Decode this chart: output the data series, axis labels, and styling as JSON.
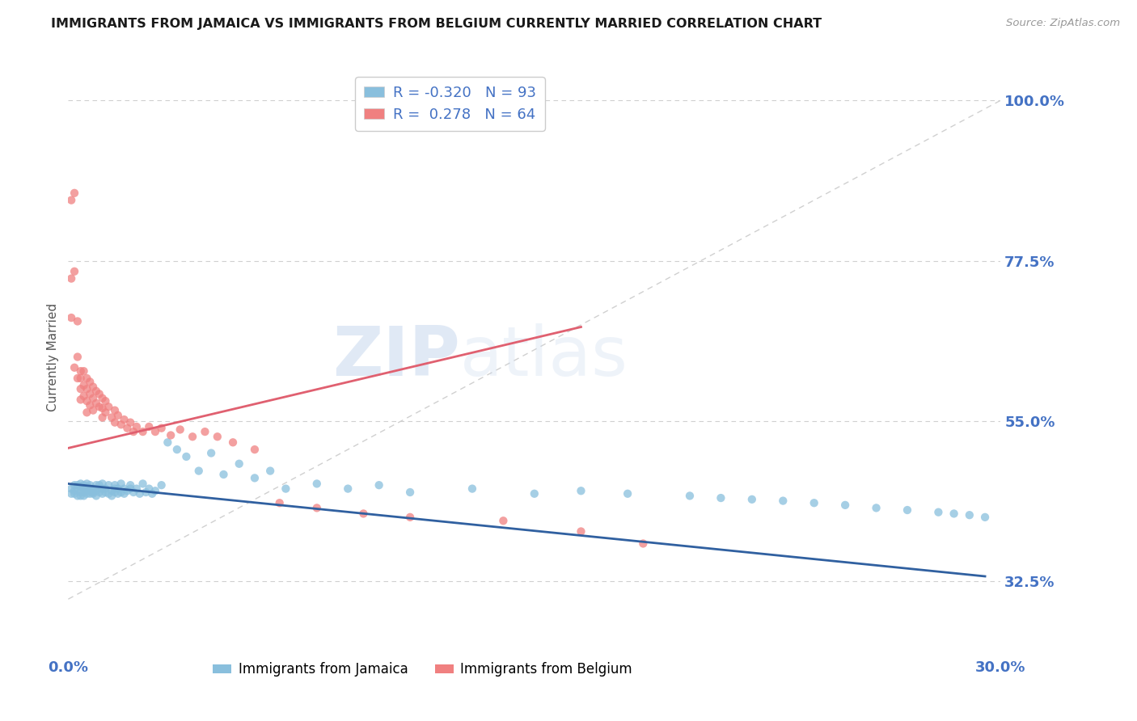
{
  "title": "IMMIGRANTS FROM JAMAICA VS IMMIGRANTS FROM BELGIUM CURRENTLY MARRIED CORRELATION CHART",
  "source_text": "Source: ZipAtlas.com",
  "ylabel": "Currently Married",
  "xlim": [
    0.0,
    0.3
  ],
  "ylim": [
    0.22,
    1.06
  ],
  "yticks": [
    0.325,
    0.55,
    0.775,
    1.0
  ],
  "ytick_labels": [
    "32.5%",
    "55.0%",
    "77.5%",
    "100.0%"
  ],
  "xticks": [
    0.0,
    0.3
  ],
  "xtick_labels": [
    "0.0%",
    "30.0%"
  ],
  "series_jamaica": {
    "name": "Immigrants from Jamaica",
    "color": "#89bfdd",
    "marker_color": "#89bfdd",
    "R": -0.32,
    "N": 93,
    "x": [
      0.001,
      0.001,
      0.002,
      0.002,
      0.002,
      0.003,
      0.003,
      0.003,
      0.004,
      0.004,
      0.004,
      0.004,
      0.005,
      0.005,
      0.005,
      0.005,
      0.006,
      0.006,
      0.006,
      0.006,
      0.007,
      0.007,
      0.007,
      0.007,
      0.008,
      0.008,
      0.008,
      0.009,
      0.009,
      0.009,
      0.01,
      0.01,
      0.01,
      0.011,
      0.011,
      0.011,
      0.012,
      0.012,
      0.013,
      0.013,
      0.014,
      0.014,
      0.015,
      0.015,
      0.015,
      0.016,
      0.016,
      0.017,
      0.017,
      0.018,
      0.018,
      0.019,
      0.02,
      0.02,
      0.021,
      0.022,
      0.023,
      0.024,
      0.025,
      0.026,
      0.027,
      0.028,
      0.03,
      0.032,
      0.035,
      0.038,
      0.042,
      0.046,
      0.05,
      0.055,
      0.06,
      0.065,
      0.07,
      0.08,
      0.09,
      0.1,
      0.11,
      0.13,
      0.15,
      0.165,
      0.18,
      0.2,
      0.21,
      0.22,
      0.23,
      0.24,
      0.25,
      0.26,
      0.27,
      0.28,
      0.285,
      0.29,
      0.295
    ],
    "y": [
      0.455,
      0.448,
      0.46,
      0.452,
      0.448,
      0.455,
      0.46,
      0.445,
      0.45,
      0.458,
      0.462,
      0.445,
      0.455,
      0.46,
      0.45,
      0.445,
      0.452,
      0.458,
      0.448,
      0.462,
      0.455,
      0.448,
      0.46,
      0.452,
      0.45,
      0.455,
      0.448,
      0.46,
      0.452,
      0.445,
      0.455,
      0.46,
      0.45,
      0.455,
      0.448,
      0.462,
      0.45,
      0.455,
      0.448,
      0.46,
      0.452,
      0.445,
      0.455,
      0.46,
      0.45,
      0.455,
      0.448,
      0.462,
      0.45,
      0.455,
      0.448,
      0.452,
      0.455,
      0.46,
      0.45,
      0.455,
      0.448,
      0.462,
      0.45,
      0.455,
      0.448,
      0.452,
      0.46,
      0.52,
      0.51,
      0.5,
      0.48,
      0.505,
      0.475,
      0.49,
      0.47,
      0.48,
      0.455,
      0.462,
      0.455,
      0.46,
      0.45,
      0.455,
      0.448,
      0.452,
      0.448,
      0.445,
      0.442,
      0.44,
      0.438,
      0.435,
      0.432,
      0.428,
      0.425,
      0.422,
      0.42,
      0.418,
      0.415
    ],
    "trend_x": [
      0.0,
      0.295
    ],
    "trend_y": [
      0.462,
      0.332
    ]
  },
  "series_belgium": {
    "name": "Immigrants from Belgium",
    "color": "#f08080",
    "marker_color": "#f08080",
    "R": 0.278,
    "N": 64,
    "x": [
      0.001,
      0.001,
      0.001,
      0.002,
      0.002,
      0.002,
      0.003,
      0.003,
      0.003,
      0.004,
      0.004,
      0.004,
      0.004,
      0.005,
      0.005,
      0.005,
      0.006,
      0.006,
      0.006,
      0.006,
      0.007,
      0.007,
      0.007,
      0.008,
      0.008,
      0.008,
      0.009,
      0.009,
      0.01,
      0.01,
      0.011,
      0.011,
      0.011,
      0.012,
      0.012,
      0.013,
      0.014,
      0.015,
      0.015,
      0.016,
      0.017,
      0.018,
      0.019,
      0.02,
      0.021,
      0.022,
      0.024,
      0.026,
      0.028,
      0.03,
      0.033,
      0.036,
      0.04,
      0.044,
      0.048,
      0.053,
      0.06,
      0.068,
      0.08,
      0.095,
      0.11,
      0.14,
      0.165,
      0.185
    ],
    "y": [
      0.86,
      0.75,
      0.695,
      0.87,
      0.76,
      0.625,
      0.69,
      0.64,
      0.61,
      0.62,
      0.61,
      0.595,
      0.58,
      0.62,
      0.6,
      0.585,
      0.61,
      0.595,
      0.578,
      0.562,
      0.605,
      0.588,
      0.572,
      0.598,
      0.582,
      0.565,
      0.592,
      0.575,
      0.588,
      0.57,
      0.582,
      0.568,
      0.555,
      0.578,
      0.562,
      0.57,
      0.555,
      0.565,
      0.548,
      0.558,
      0.545,
      0.552,
      0.54,
      0.548,
      0.535,
      0.542,
      0.535,
      0.542,
      0.535,
      0.54,
      0.53,
      0.538,
      0.528,
      0.535,
      0.528,
      0.52,
      0.51,
      0.435,
      0.428,
      0.42,
      0.415,
      0.41,
      0.395,
      0.378
    ],
    "trend_x": [
      0.0,
      0.165
    ],
    "trend_y": [
      0.512,
      0.682
    ]
  },
  "ref_line": {
    "x": [
      0.0,
      0.3
    ],
    "y": [
      0.3,
      1.0
    ],
    "color": "#d0d0d0",
    "style": "--"
  },
  "watermark_zip": "ZIP",
  "watermark_atlas": "atlas",
  "background_color": "#ffffff",
  "grid_color": "#d0d0d0",
  "title_color": "#1a1a1a",
  "axis_color": "#4472c4",
  "title_fontsize": 11.5
}
